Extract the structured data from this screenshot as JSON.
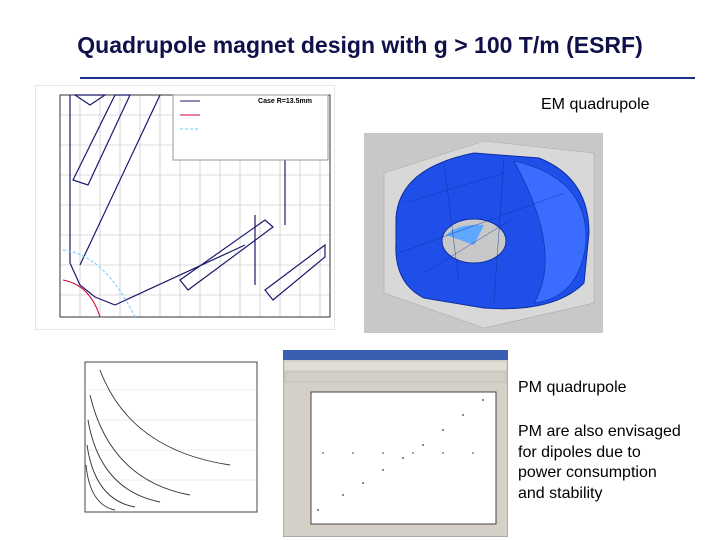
{
  "slide": {
    "title": "Quadrupole magnet design with g > 100 T/m (ESRF)",
    "em_label": "EM quadrupole",
    "pm_label": "PM quadrupole",
    "pm_note_lines": [
      "PM are also envisaged",
      "for dipoles due to",
      "power consumption",
      "and stability"
    ],
    "legend_case": "Case R=13.5mm"
  }
}
